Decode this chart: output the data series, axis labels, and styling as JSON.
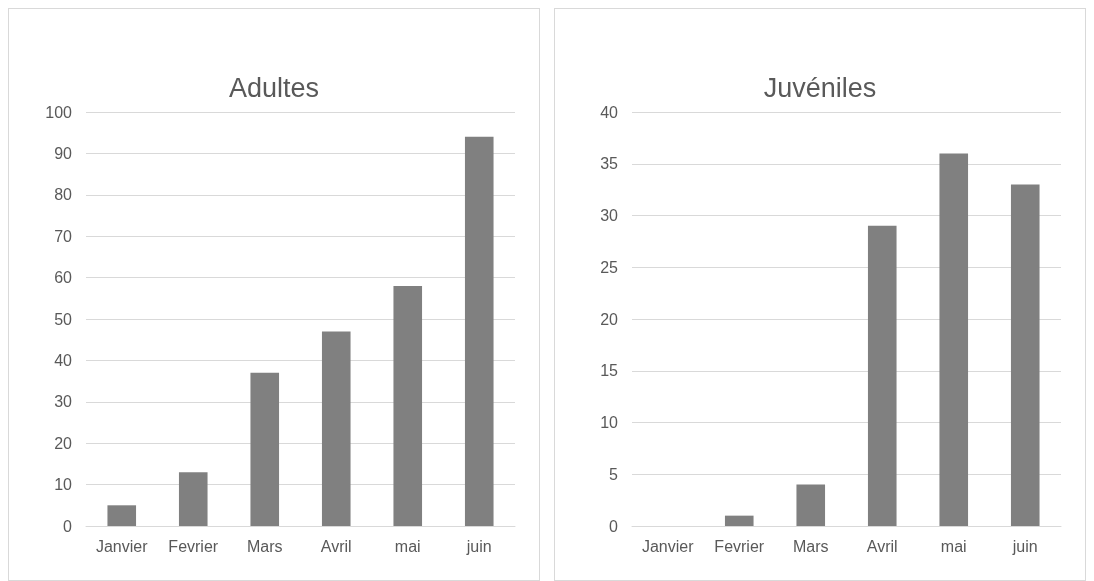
{
  "chart_data": [
    {
      "type": "bar",
      "title": "Adultes",
      "categories": [
        "Janvier",
        "Fevrier",
        "Mars",
        "Avril",
        "mai",
        "juin"
      ],
      "values": [
        5,
        13,
        37,
        47,
        58,
        94
      ],
      "color": "#808080",
      "ylim": [
        0,
        100
      ],
      "yticks": [
        0,
        10,
        20,
        30,
        40,
        50,
        60,
        70,
        80,
        90,
        100
      ],
      "grid": "y"
    },
    {
      "type": "bar",
      "title": "Juvéniles",
      "categories": [
        "Janvier",
        "Fevrier",
        "Mars",
        "Avril",
        "mai",
        "juin"
      ],
      "values": [
        0,
        1,
        4,
        29,
        36,
        33
      ],
      "color": "#808080",
      "ylim": [
        0,
        40
      ],
      "yticks": [
        0,
        5,
        10,
        15,
        20,
        25,
        30,
        35,
        40
      ],
      "grid": "y"
    }
  ]
}
